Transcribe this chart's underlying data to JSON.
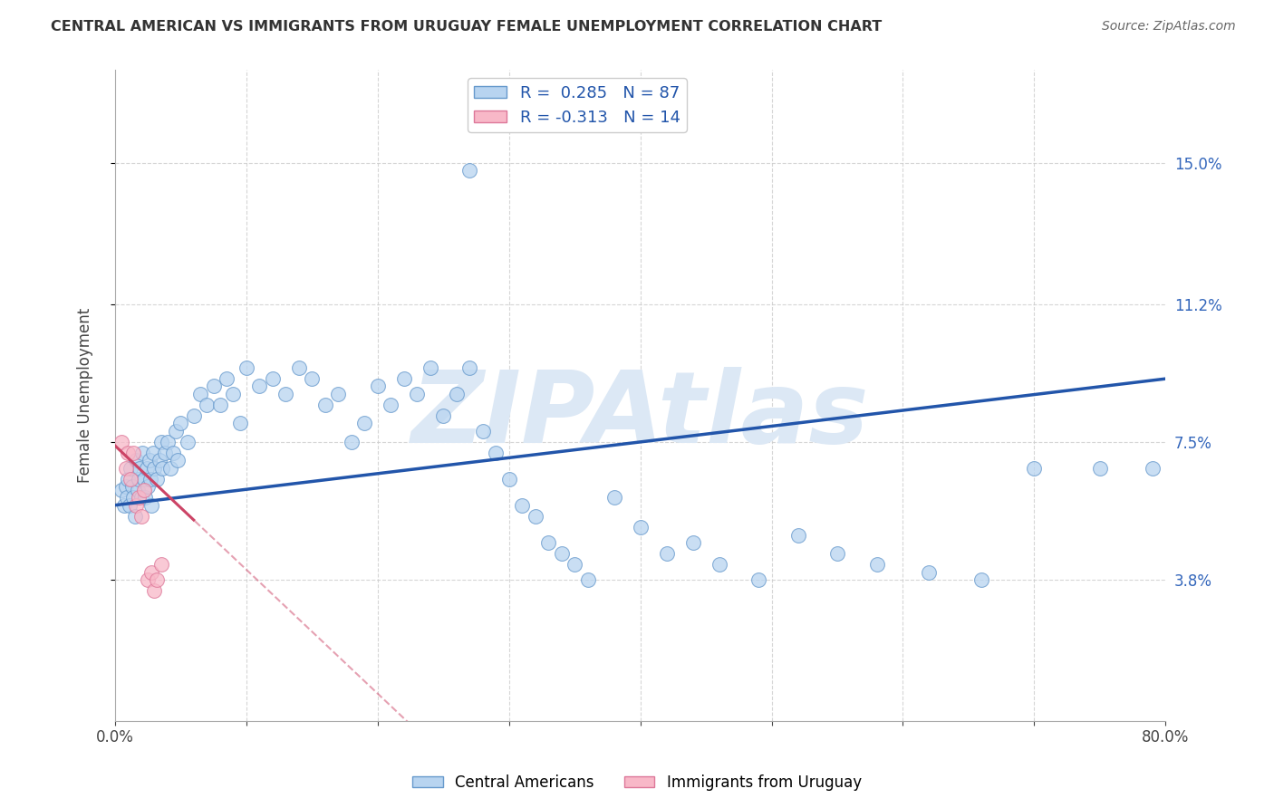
{
  "title": "CENTRAL AMERICAN VS IMMIGRANTS FROM URUGUAY FEMALE UNEMPLOYMENT CORRELATION CHART",
  "source": "Source: ZipAtlas.com",
  "ylabel": "Female Unemployment",
  "xlim": [
    0,
    0.8
  ],
  "ylim": [
    0,
    0.175
  ],
  "yticks": [
    0.038,
    0.075,
    0.112,
    0.15
  ],
  "ytick_labels": [
    "3.8%",
    "7.5%",
    "11.2%",
    "15.0%"
  ],
  "r_blue": 0.285,
  "n_blue": 87,
  "r_pink": -0.313,
  "n_pink": 14,
  "blue_scatter_color": "#b8d4f0",
  "blue_edge_color": "#6699cc",
  "blue_line_color": "#2255aa",
  "pink_scatter_color": "#f8b8c8",
  "pink_edge_color": "#dd7799",
  "pink_line_color": "#cc4466",
  "watermark": "ZIPAtlas",
  "watermark_color": "#dce8f5",
  "background_color": "#ffffff",
  "grid_color": "#cccccc",
  "title_color": "#333333",
  "source_color": "#666666",
  "tick_label_color": "#3366bb",
  "blue_x": [
    0.005,
    0.007,
    0.008,
    0.009,
    0.01,
    0.011,
    0.012,
    0.013,
    0.014,
    0.015,
    0.016,
    0.017,
    0.018,
    0.019,
    0.02,
    0.021,
    0.022,
    0.023,
    0.024,
    0.025,
    0.026,
    0.027,
    0.028,
    0.029,
    0.03,
    0.032,
    0.034,
    0.035,
    0.036,
    0.038,
    0.04,
    0.042,
    0.044,
    0.046,
    0.048,
    0.05,
    0.055,
    0.06,
    0.065,
    0.07,
    0.075,
    0.08,
    0.085,
    0.09,
    0.095,
    0.1,
    0.11,
    0.12,
    0.13,
    0.14,
    0.15,
    0.16,
    0.17,
    0.18,
    0.19,
    0.2,
    0.21,
    0.22,
    0.23,
    0.24,
    0.25,
    0.26,
    0.27,
    0.28,
    0.29,
    0.3,
    0.31,
    0.32,
    0.33,
    0.34,
    0.35,
    0.36,
    0.38,
    0.4,
    0.42,
    0.44,
    0.46,
    0.49,
    0.52,
    0.55,
    0.58,
    0.62,
    0.66,
    0.7,
    0.75,
    0.79,
    0.27
  ],
  "blue_y": [
    0.062,
    0.058,
    0.063,
    0.06,
    0.065,
    0.058,
    0.068,
    0.063,
    0.06,
    0.055,
    0.07,
    0.062,
    0.065,
    0.068,
    0.06,
    0.072,
    0.065,
    0.06,
    0.068,
    0.063,
    0.07,
    0.065,
    0.058,
    0.072,
    0.068,
    0.065,
    0.07,
    0.075,
    0.068,
    0.072,
    0.075,
    0.068,
    0.072,
    0.078,
    0.07,
    0.08,
    0.075,
    0.082,
    0.088,
    0.085,
    0.09,
    0.085,
    0.092,
    0.088,
    0.08,
    0.095,
    0.09,
    0.092,
    0.088,
    0.095,
    0.092,
    0.085,
    0.088,
    0.075,
    0.08,
    0.09,
    0.085,
    0.092,
    0.088,
    0.095,
    0.082,
    0.088,
    0.095,
    0.078,
    0.072,
    0.065,
    0.058,
    0.055,
    0.048,
    0.045,
    0.042,
    0.038,
    0.06,
    0.052,
    0.045,
    0.048,
    0.042,
    0.038,
    0.05,
    0.045,
    0.042,
    0.04,
    0.038,
    0.068,
    0.068,
    0.068,
    0.148
  ],
  "pink_x": [
    0.005,
    0.008,
    0.01,
    0.012,
    0.014,
    0.016,
    0.018,
    0.02,
    0.022,
    0.025,
    0.028,
    0.03,
    0.032,
    0.035
  ],
  "pink_y": [
    0.075,
    0.068,
    0.072,
    0.065,
    0.072,
    0.058,
    0.06,
    0.055,
    0.062,
    0.038,
    0.04,
    0.035,
    0.038,
    0.042
  ],
  "blue_trend_x0": 0.0,
  "blue_trend_y0": 0.058,
  "blue_trend_x1": 0.8,
  "blue_trend_y1": 0.092,
  "pink_trend_x0": 0.0,
  "pink_trend_y0": 0.074,
  "pink_trend_x1": 0.06,
  "pink_trend_y1": 0.054
}
